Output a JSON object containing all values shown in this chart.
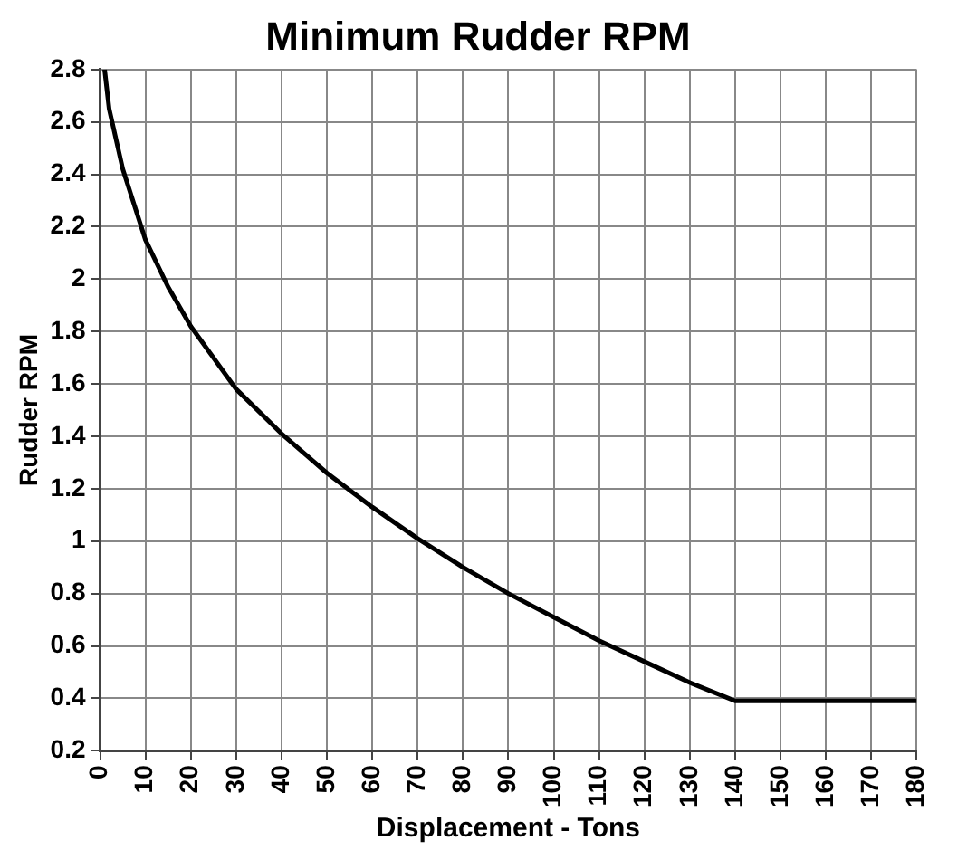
{
  "chart_data": {
    "type": "line",
    "title": "Minimum Rudder RPM",
    "xlabel": "Displacement - Tons",
    "ylabel": "Rudder RPM",
    "series": [
      {
        "color": "#000000",
        "x": [
          1,
          2,
          5,
          10,
          15,
          20,
          30,
          40,
          50,
          60,
          70,
          80,
          90,
          100,
          110,
          120,
          130,
          140,
          180
        ],
        "values": [
          2.8,
          2.65,
          2.42,
          2.15,
          1.97,
          1.82,
          1.58,
          1.41,
          1.26,
          1.13,
          1.01,
          0.9,
          0.8,
          0.71,
          0.62,
          0.54,
          0.46,
          0.39,
          0.39
        ]
      }
    ],
    "xlim": [
      0,
      180
    ],
    "xticks": [
      0,
      10,
      20,
      30,
      40,
      50,
      60,
      70,
      80,
      90,
      100,
      110,
      120,
      130,
      140,
      150,
      160,
      170,
      180
    ],
    "ylim": [
      0.2,
      2.8
    ],
    "yticks": [
      0.2,
      0.4,
      0.6,
      0.8,
      1,
      1.2,
      1.4,
      1.6,
      1.8,
      2,
      2.2,
      2.4,
      2.6,
      2.8
    ],
    "grid": true,
    "legend": false,
    "marker": "none",
    "line_style": "solid"
  }
}
